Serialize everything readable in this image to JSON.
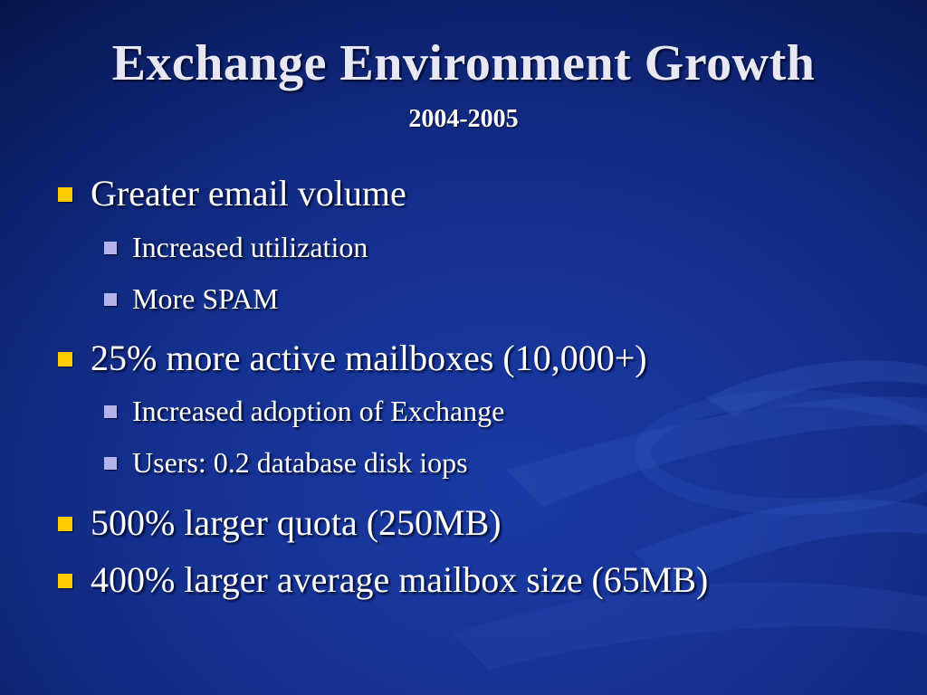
{
  "slide": {
    "title": "Exchange Environment Growth",
    "subtitle": "2004-2005",
    "bullets": [
      {
        "text": "Greater email volume",
        "children": [
          {
            "text": "Increased utilization"
          },
          {
            "text": "More SPAM"
          }
        ]
      },
      {
        "text": "25% more active mailboxes (10,000+)",
        "children": [
          {
            "text": "Increased adoption of Exchange"
          },
          {
            "text": "Users: 0.2 database disk iops"
          }
        ]
      },
      {
        "text": "500% larger quota (250MB)"
      },
      {
        "text": "400% larger average mailbox size (65MB)"
      }
    ]
  },
  "colors": {
    "background": "#14308f",
    "title_text": "#e8e8f4",
    "level1_marker": "#ffcc00",
    "level2_marker": "#b4b4ec"
  },
  "icons": {
    "level1_marker": "square-bullet-icon",
    "level2_marker": "square-bullet-icon"
  }
}
